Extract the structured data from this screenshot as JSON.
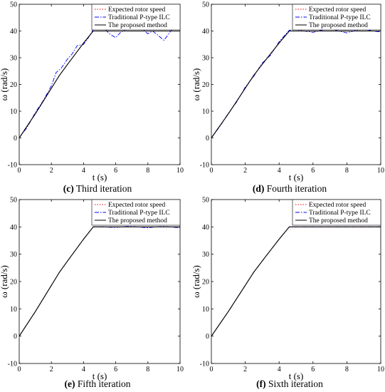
{
  "chart_data": [
    {
      "type": "line",
      "caption_letter": "(c)",
      "caption_text": "Third iteration",
      "xlabel": "t (s)",
      "ylabel": "ω (rad/s)",
      "xlim": [
        0,
        10
      ],
      "ylim": [
        -10,
        50
      ],
      "xticks": [
        "0",
        "2",
        "4",
        "6",
        "8",
        "10"
      ],
      "yticks": [
        "-10",
        "0",
        "10",
        "20",
        "30",
        "40",
        "50"
      ],
      "grid": false,
      "legend": "top-right",
      "series": [
        {
          "name": "Expected rotor speed",
          "color": "#ff0000",
          "style": "dotted",
          "x": [
            0,
            0.5,
            1,
            1.5,
            2,
            2.5,
            3,
            3.5,
            4,
            4.6,
            5,
            6,
            7,
            8,
            9,
            10
          ],
          "y": [
            0,
            4.5,
            9,
            13.8,
            18.6,
            23.4,
            27.5,
            31.5,
            35.5,
            40,
            40,
            40,
            40,
            40,
            40,
            40
          ]
        },
        {
          "name": "Traditional P-type ILC",
          "color": "#0000ff",
          "style": "dashdot",
          "x": [
            0,
            0.5,
            1,
            1.5,
            2,
            2.3,
            2.6,
            3,
            3.3,
            3.6,
            4,
            4.3,
            4.6,
            5,
            5.3,
            5.6,
            6,
            6.3,
            6.6,
            7,
            7.3,
            7.6,
            8,
            8.3,
            8.6,
            9,
            9.3,
            9.6,
            10
          ],
          "y": [
            0,
            4,
            9.5,
            14,
            19.5,
            24.5,
            26,
            29.5,
            31.5,
            34.5,
            35,
            37.5,
            40.5,
            41.5,
            41,
            39,
            37.5,
            39.5,
            40.5,
            41,
            42,
            41,
            39,
            40,
            38.5,
            36.5,
            39,
            41.5,
            41
          ]
        },
        {
          "name": "The proposed method",
          "color": "#000000",
          "style": "solid",
          "x": [
            0,
            0.5,
            1,
            1.5,
            2,
            2.5,
            3,
            3.5,
            4,
            4.6,
            5,
            6,
            7,
            8,
            9,
            10
          ],
          "y": [
            0,
            4.5,
            9,
            13.8,
            18.6,
            23.4,
            27.5,
            31.5,
            35.5,
            40,
            40,
            40,
            40,
            40,
            40,
            40
          ]
        }
      ]
    },
    {
      "type": "line",
      "caption_letter": "(d)",
      "caption_text": "Fourth iteration",
      "xlabel": "t (s)",
      "ylabel": "ω (rad/s)",
      "xlim": [
        0,
        10
      ],
      "ylim": [
        -10,
        50
      ],
      "xticks": [
        "0",
        "2",
        "4",
        "6",
        "8",
        "10"
      ],
      "yticks": [
        "-10",
        "0",
        "10",
        "20",
        "30",
        "40",
        "50"
      ],
      "grid": false,
      "legend": "top-right",
      "series": [
        {
          "name": "Expected rotor speed",
          "color": "#ff0000",
          "style": "dotted",
          "x": [
            0,
            0.5,
            1,
            1.5,
            2,
            2.5,
            3,
            3.5,
            4,
            4.6,
            5,
            6,
            7,
            8,
            9,
            10
          ],
          "y": [
            0,
            4.5,
            9,
            13.8,
            18.6,
            23.4,
            27.5,
            31.5,
            35.5,
            40,
            40,
            40,
            40,
            40,
            40,
            40
          ]
        },
        {
          "name": "Traditional P-type ILC",
          "color": "#0000ff",
          "style": "dashdot",
          "x": [
            0,
            0.5,
            1,
            1.5,
            2,
            2.5,
            3,
            3.5,
            4,
            4.6,
            5,
            5.5,
            6,
            6.5,
            7,
            7.5,
            8,
            8.5,
            9,
            9.5,
            10
          ],
          "y": [
            0,
            4.3,
            9.2,
            13.5,
            19,
            23,
            28,
            31,
            36,
            40.3,
            40.5,
            40,
            39.5,
            40.3,
            40.8,
            40,
            39.3,
            40.2,
            40.8,
            40,
            39.7
          ]
        },
        {
          "name": "The proposed method",
          "color": "#000000",
          "style": "solid",
          "x": [
            0,
            0.5,
            1,
            1.5,
            2,
            2.5,
            3,
            3.5,
            4,
            4.6,
            5,
            6,
            7,
            8,
            9,
            10
          ],
          "y": [
            0,
            4.5,
            9,
            13.8,
            18.6,
            23.4,
            27.5,
            31.5,
            35.5,
            40,
            40,
            40,
            40,
            40,
            40,
            40
          ]
        }
      ]
    },
    {
      "type": "line",
      "caption_letter": "(e)",
      "caption_text": "Fifth iteration",
      "xlabel": "t (s)",
      "ylabel": "ω (rad/s)",
      "xlim": [
        0,
        10
      ],
      "ylim": [
        -10,
        50
      ],
      "xticks": [
        "0",
        "2",
        "4",
        "6",
        "8",
        "10"
      ],
      "yticks": [
        "-10",
        "0",
        "10",
        "20",
        "30",
        "40",
        "50"
      ],
      "grid": false,
      "legend": "top-right",
      "series": [
        {
          "name": "Expected rotor speed",
          "color": "#ff0000",
          "style": "dotted",
          "x": [
            0,
            0.5,
            1,
            1.5,
            2,
            2.5,
            3,
            3.5,
            4,
            4.6,
            5,
            6,
            7,
            8,
            9,
            10
          ],
          "y": [
            0,
            4.5,
            9,
            13.8,
            18.6,
            23.4,
            27.5,
            31.5,
            35.5,
            40,
            40,
            40,
            40,
            40,
            40,
            40
          ]
        },
        {
          "name": "Traditional P-type ILC",
          "color": "#0000ff",
          "style": "dashdot",
          "x": [
            0,
            0.5,
            1,
            1.5,
            2,
            2.5,
            3,
            3.5,
            4,
            4.6,
            5,
            5.5,
            6,
            6.5,
            7,
            7.5,
            8,
            8.5,
            9,
            9.5,
            10
          ],
          "y": [
            0,
            4.5,
            9,
            13.8,
            18.6,
            23.4,
            27.5,
            31.5,
            35.5,
            40,
            40.1,
            39.9,
            39.8,
            40.1,
            40.2,
            39.9,
            39.7,
            40,
            40.2,
            39.9,
            39.7
          ]
        },
        {
          "name": "The proposed method",
          "color": "#000000",
          "style": "solid",
          "x": [
            0,
            0.5,
            1,
            1.5,
            2,
            2.5,
            3,
            3.5,
            4,
            4.6,
            5,
            6,
            7,
            8,
            9,
            10
          ],
          "y": [
            0,
            4.5,
            9,
            13.8,
            18.6,
            23.4,
            27.5,
            31.5,
            35.5,
            40,
            40,
            40,
            40,
            40,
            40,
            40
          ]
        }
      ]
    },
    {
      "type": "line",
      "caption_letter": "(f)",
      "caption_text": "Sixth iteration",
      "xlabel": "t (s)",
      "ylabel": "ω (rad/s)",
      "xlim": [
        0,
        10
      ],
      "ylim": [
        -10,
        50
      ],
      "xticks": [
        "0",
        "2",
        "4",
        "6",
        "8",
        "10"
      ],
      "yticks": [
        "-10",
        "0",
        "10",
        "20",
        "30",
        "40",
        "50"
      ],
      "grid": false,
      "legend": "top-right",
      "series": [
        {
          "name": "Expected rotor speed",
          "color": "#ff0000",
          "style": "dotted",
          "x": [
            0,
            0.5,
            1,
            1.5,
            2,
            2.5,
            3,
            3.5,
            4,
            4.6,
            5,
            6,
            7,
            8,
            9,
            10
          ],
          "y": [
            0,
            4.5,
            9,
            13.8,
            18.6,
            23.4,
            27.5,
            31.5,
            35.5,
            40,
            40,
            40,
            40,
            40,
            40,
            40
          ]
        },
        {
          "name": "Traditional P-type ILC",
          "color": "#0000ff",
          "style": "dashdot",
          "x": [
            0,
            0.5,
            1,
            1.5,
            2,
            2.5,
            3,
            3.5,
            4,
            4.6,
            5,
            6,
            7,
            8,
            9,
            10
          ],
          "y": [
            0,
            4.5,
            9,
            13.8,
            18.6,
            23.4,
            27.5,
            31.5,
            35.5,
            40,
            40,
            40,
            40,
            40,
            40,
            40
          ]
        },
        {
          "name": "The proposed method",
          "color": "#000000",
          "style": "solid",
          "x": [
            0,
            0.5,
            1,
            1.5,
            2,
            2.5,
            3,
            3.5,
            4,
            4.6,
            5,
            6,
            7,
            8,
            9,
            10
          ],
          "y": [
            0,
            4.5,
            9,
            13.8,
            18.6,
            23.4,
            27.5,
            31.5,
            35.5,
            40,
            40,
            40,
            40,
            40,
            40,
            40
          ]
        }
      ]
    }
  ]
}
